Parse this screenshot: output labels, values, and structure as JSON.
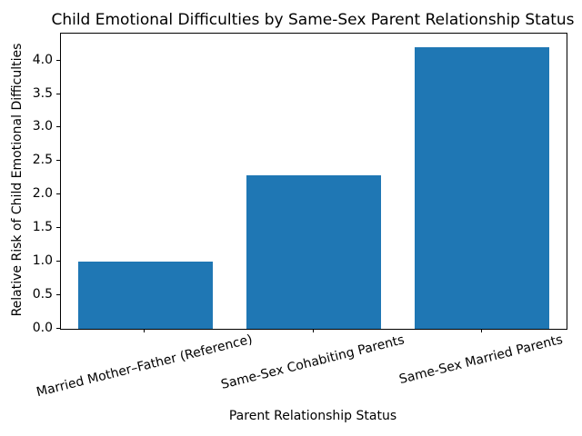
{
  "chart_data": {
    "type": "bar",
    "title": "Child Emotional Difficulties by Same-Sex Parent Relationship Status",
    "xlabel": "Parent Relationship Status",
    "ylabel": "Relative Risk of Child Emotional Difficulties",
    "categories": [
      "Married Mother–Father (Reference)",
      "Same-Sex Cohabiting Parents",
      "Same-Sex Married Parents"
    ],
    "values": [
      1.0,
      2.3,
      4.2
    ],
    "bar_color": "#1f77b4",
    "ylim": [
      0,
      4.41
    ],
    "yticks": [
      0,
      0.5,
      1,
      1.5,
      2,
      2.5,
      3,
      3.5,
      4
    ],
    "ytick_labels": [
      "0.0",
      "0.5",
      "1.0",
      "1.5",
      "2.0",
      "2.5",
      "3.0",
      "3.5",
      "4.0"
    ],
    "grid": false,
    "legend_position": "none"
  }
}
